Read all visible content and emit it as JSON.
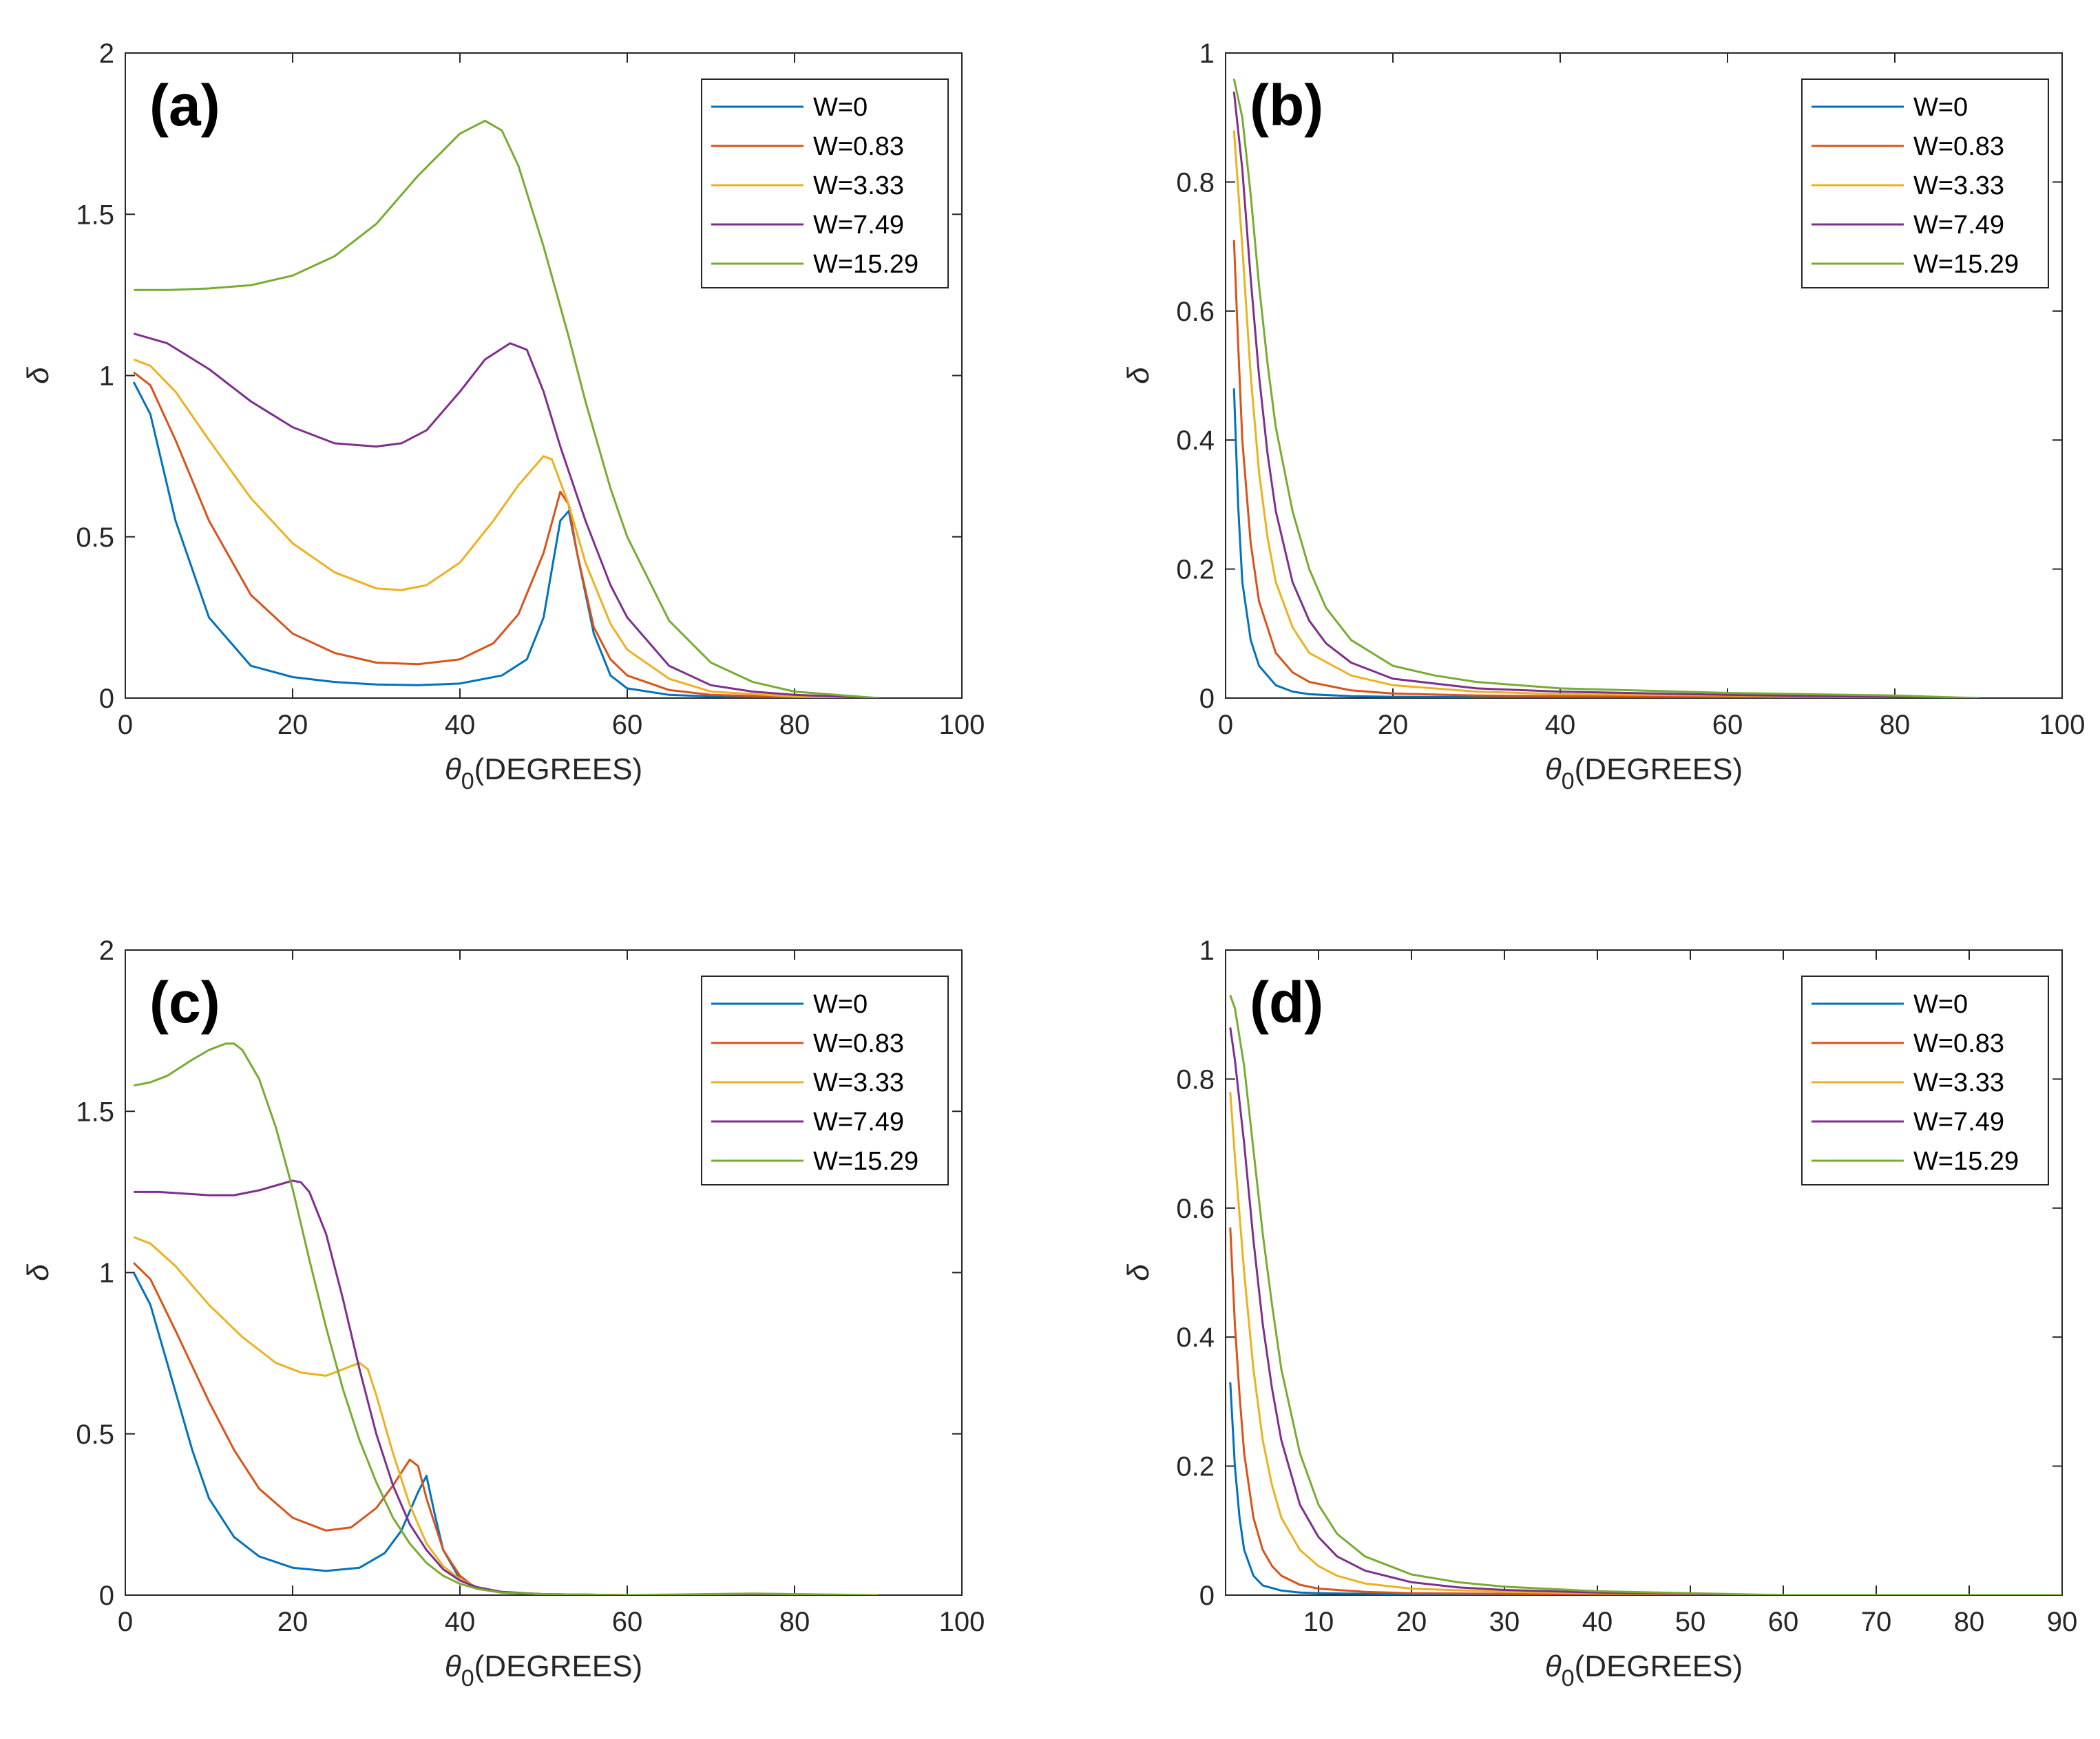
{
  "figure": {
    "panels": [
      {
        "id": "a",
        "panel_label": "(a)"
      },
      {
        "id": "b",
        "panel_label": "(b)"
      },
      {
        "id": "c",
        "panel_label": "(c)"
      },
      {
        "id": "d",
        "panel_label": "(d)"
      }
    ]
  },
  "series_colors": [
    "#0072BD",
    "#D95319",
    "#EDB120",
    "#7E2F8E",
    "#77AC30"
  ],
  "chart_data": [
    {
      "panel": "(a)",
      "type": "line",
      "xlabel_symbol": "θ",
      "xlabel_sub": "0",
      "xlabel_text": "(DEGREES)",
      "ylabel": "δ",
      "xlim": [
        0,
        100
      ],
      "ylim": [
        0,
        2
      ],
      "xticks": [
        0,
        20,
        40,
        60,
        80,
        100
      ],
      "xtick_labels": [
        "0",
        "20",
        "40",
        "60",
        "80",
        "100"
      ],
      "yticks": [
        0,
        0.5,
        1,
        1.5,
        2
      ],
      "ytick_labels": [
        "0",
        "0.5",
        "1",
        "1.5",
        "2"
      ],
      "legend_position": "top-right",
      "series": [
        {
          "name": "W=0",
          "x": [
            1,
            3,
            6,
            10,
            15,
            20,
            25,
            30,
            35,
            40,
            45,
            48,
            50,
            51,
            52,
            53,
            54,
            56,
            58,
            60,
            65,
            70,
            80,
            90
          ],
          "y": [
            0.98,
            0.88,
            0.55,
            0.25,
            0.1,
            0.065,
            0.05,
            0.042,
            0.04,
            0.045,
            0.07,
            0.12,
            0.25,
            0.4,
            0.55,
            0.58,
            0.45,
            0.2,
            0.07,
            0.03,
            0.01,
            0.005,
            0.002,
            0.0
          ]
        },
        {
          "name": "W=0.83",
          "x": [
            1,
            3,
            6,
            10,
            15,
            20,
            25,
            30,
            35,
            40,
            44,
            47,
            50,
            52,
            53,
            54,
            56,
            58,
            60,
            65,
            70,
            80,
            90
          ],
          "y": [
            1.01,
            0.97,
            0.8,
            0.55,
            0.32,
            0.2,
            0.14,
            0.11,
            0.105,
            0.12,
            0.17,
            0.26,
            0.45,
            0.64,
            0.6,
            0.45,
            0.22,
            0.12,
            0.07,
            0.025,
            0.01,
            0.003,
            0.0
          ]
        },
        {
          "name": "W=3.33",
          "x": [
            1,
            3,
            6,
            10,
            15,
            20,
            25,
            30,
            33,
            36,
            40,
            44,
            47,
            50,
            51,
            53,
            55,
            58,
            60,
            65,
            70,
            80,
            90
          ],
          "y": [
            1.05,
            1.03,
            0.95,
            0.8,
            0.62,
            0.48,
            0.39,
            0.34,
            0.335,
            0.35,
            0.42,
            0.55,
            0.66,
            0.75,
            0.74,
            0.6,
            0.42,
            0.23,
            0.15,
            0.06,
            0.02,
            0.005,
            0.0
          ]
        },
        {
          "name": "W=7.49",
          "x": [
            1,
            5,
            10,
            15,
            20,
            25,
            30,
            33,
            36,
            40,
            43,
            46,
            48,
            50,
            52,
            55,
            58,
            60,
            65,
            70,
            75,
            80,
            90
          ],
          "y": [
            1.13,
            1.1,
            1.02,
            0.92,
            0.84,
            0.79,
            0.78,
            0.79,
            0.83,
            0.95,
            1.05,
            1.1,
            1.08,
            0.95,
            0.78,
            0.55,
            0.35,
            0.25,
            0.1,
            0.04,
            0.02,
            0.01,
            0.0
          ]
        },
        {
          "name": "W=15.29",
          "x": [
            1,
            5,
            10,
            15,
            20,
            25,
            30,
            35,
            40,
            43,
            45,
            47,
            50,
            53,
            55,
            58,
            60,
            65,
            70,
            75,
            80,
            90
          ],
          "y": [
            1.265,
            1.265,
            1.27,
            1.28,
            1.31,
            1.37,
            1.47,
            1.62,
            1.75,
            1.79,
            1.76,
            1.65,
            1.4,
            1.12,
            0.92,
            0.65,
            0.5,
            0.24,
            0.11,
            0.05,
            0.02,
            0.0
          ]
        }
      ]
    },
    {
      "panel": "(b)",
      "type": "line",
      "xlabel_symbol": "θ",
      "xlabel_sub": "0",
      "xlabel_text": "(DEGREES)",
      "ylabel": "δ",
      "xlim": [
        0,
        100
      ],
      "ylim": [
        0,
        1
      ],
      "xticks": [
        0,
        20,
        40,
        60,
        80,
        100
      ],
      "xtick_labels": [
        "0",
        "20",
        "40",
        "60",
        "80",
        "100"
      ],
      "yticks": [
        0,
        0.2,
        0.4,
        0.6,
        0.8,
        1
      ],
      "ytick_labels": [
        "0",
        "0.2",
        "0.4",
        "0.6",
        "0.8",
        "1"
      ],
      "legend_position": "top-right",
      "series": [
        {
          "name": "W=0",
          "x": [
            1,
            1.5,
            2,
            3,
            4,
            6,
            8,
            10,
            15,
            20,
            40,
            60,
            90
          ],
          "y": [
            0.48,
            0.3,
            0.18,
            0.09,
            0.05,
            0.02,
            0.01,
            0.006,
            0.003,
            0.002,
            0.001,
            0.0,
            0.0
          ]
        },
        {
          "name": "W=0.83",
          "x": [
            1,
            1.5,
            2,
            3,
            4,
            6,
            8,
            10,
            15,
            20,
            30,
            40,
            60,
            90
          ],
          "y": [
            0.71,
            0.55,
            0.4,
            0.24,
            0.15,
            0.07,
            0.04,
            0.025,
            0.012,
            0.007,
            0.004,
            0.003,
            0.002,
            0.0
          ]
        },
        {
          "name": "W=3.33",
          "x": [
            1,
            2,
            3,
            4,
            5,
            6,
            8,
            10,
            15,
            20,
            30,
            40,
            60,
            90
          ],
          "y": [
            0.88,
            0.7,
            0.5,
            0.35,
            0.25,
            0.18,
            0.11,
            0.07,
            0.035,
            0.02,
            0.01,
            0.006,
            0.004,
            0.0
          ]
        },
        {
          "name": "W=7.49",
          "x": [
            1,
            2,
            3,
            4,
            5,
            6,
            8,
            10,
            12,
            15,
            20,
            30,
            40,
            60,
            90
          ],
          "y": [
            0.94,
            0.82,
            0.65,
            0.5,
            0.38,
            0.29,
            0.18,
            0.12,
            0.085,
            0.055,
            0.03,
            0.015,
            0.01,
            0.005,
            0.0
          ]
        },
        {
          "name": "W=15.29",
          "x": [
            1,
            2,
            3,
            4,
            5,
            6,
            8,
            10,
            12,
            15,
            20,
            25,
            30,
            40,
            60,
            80,
            90
          ],
          "y": [
            0.96,
            0.9,
            0.78,
            0.64,
            0.52,
            0.42,
            0.29,
            0.2,
            0.14,
            0.09,
            0.05,
            0.035,
            0.025,
            0.015,
            0.008,
            0.004,
            0.0
          ]
        }
      ]
    },
    {
      "panel": "(c)",
      "type": "line",
      "xlabel_symbol": "θ",
      "xlabel_sub": "0",
      "xlabel_text": "(DEGREES)",
      "ylabel": "δ",
      "xlim": [
        0,
        100
      ],
      "ylim": [
        0,
        2
      ],
      "xticks": [
        0,
        20,
        40,
        60,
        80,
        100
      ],
      "xtick_labels": [
        "0",
        "20",
        "40",
        "60",
        "80",
        "100"
      ],
      "yticks": [
        0,
        0.5,
        1,
        1.5,
        2
      ],
      "ytick_labels": [
        "0",
        "0.5",
        "1",
        "1.5",
        "2"
      ],
      "legend_position": "top-right",
      "series": [
        {
          "name": "W=0",
          "x": [
            1,
            3,
            5,
            8,
            10,
            13,
            16,
            20,
            24,
            28,
            31,
            33,
            35,
            36,
            37,
            38,
            40,
            42,
            45,
            50,
            60,
            90
          ],
          "y": [
            1.0,
            0.9,
            0.72,
            0.45,
            0.3,
            0.18,
            0.12,
            0.085,
            0.075,
            0.085,
            0.13,
            0.2,
            0.32,
            0.37,
            0.25,
            0.14,
            0.05,
            0.02,
            0.008,
            0.003,
            0.0,
            0.0
          ]
        },
        {
          "name": "W=0.83",
          "x": [
            1,
            3,
            6,
            10,
            13,
            16,
            20,
            24,
            27,
            30,
            32,
            34,
            35,
            36,
            38,
            40,
            42,
            45,
            50,
            60,
            90
          ],
          "y": [
            1.03,
            0.98,
            0.82,
            0.6,
            0.45,
            0.33,
            0.24,
            0.2,
            0.21,
            0.27,
            0.34,
            0.42,
            0.4,
            0.3,
            0.14,
            0.06,
            0.02,
            0.008,
            0.003,
            0.0,
            0.0
          ]
        },
        {
          "name": "W=3.33",
          "x": [
            1,
            3,
            6,
            10,
            14,
            18,
            21,
            24,
            26,
            28,
            29,
            30,
            32,
            34,
            36,
            38,
            40,
            42,
            45,
            50,
            60,
            90
          ],
          "y": [
            1.11,
            1.09,
            1.02,
            0.9,
            0.8,
            0.72,
            0.69,
            0.68,
            0.7,
            0.72,
            0.7,
            0.62,
            0.44,
            0.28,
            0.16,
            0.09,
            0.05,
            0.025,
            0.01,
            0.003,
            0.0,
            0.0
          ]
        },
        {
          "name": "W=7.49",
          "x": [
            1,
            4,
            7,
            10,
            13,
            16,
            18,
            20,
            21,
            22,
            24,
            26,
            28,
            30,
            32,
            34,
            36,
            38,
            40,
            42,
            45,
            50,
            60,
            90
          ],
          "y": [
            1.25,
            1.25,
            1.245,
            1.24,
            1.24,
            1.255,
            1.27,
            1.285,
            1.28,
            1.25,
            1.12,
            0.92,
            0.7,
            0.5,
            0.34,
            0.22,
            0.14,
            0.08,
            0.045,
            0.025,
            0.01,
            0.003,
            0.0,
            0.0
          ]
        },
        {
          "name": "W=15.29",
          "x": [
            1,
            3,
            5,
            8,
            10,
            12,
            13,
            14,
            16,
            18,
            20,
            22,
            24,
            26,
            28,
            30,
            32,
            34,
            36,
            38,
            40,
            42,
            45,
            50,
            60,
            75,
            90
          ],
          "y": [
            1.58,
            1.59,
            1.61,
            1.66,
            1.69,
            1.71,
            1.71,
            1.69,
            1.6,
            1.45,
            1.26,
            1.04,
            0.83,
            0.64,
            0.48,
            0.35,
            0.24,
            0.16,
            0.1,
            0.06,
            0.035,
            0.02,
            0.008,
            0.003,
            0.0,
            0.005,
            0.0
          ]
        }
      ]
    },
    {
      "panel": "(d)",
      "type": "line",
      "xlabel_symbol": "θ",
      "xlabel_sub": "0",
      "xlabel_text": "(DEGREES)",
      "ylabel": "δ",
      "xlim": [
        0,
        90
      ],
      "ylim": [
        0,
        1
      ],
      "xticks": [
        10,
        20,
        30,
        40,
        50,
        60,
        70,
        80,
        90
      ],
      "xtick_labels": [
        "10",
        "20",
        "30",
        "40",
        "50",
        "60",
        "70",
        "80",
        "90"
      ],
      "yticks": [
        0,
        0.2,
        0.4,
        0.6,
        0.8,
        1
      ],
      "ytick_labels": [
        "0",
        "0.2",
        "0.4",
        "0.6",
        "0.8",
        "1"
      ],
      "legend_position": "top-right",
      "series": [
        {
          "name": "W=0",
          "x": [
            0.5,
            1,
            1.5,
            2,
            3,
            4,
            6,
            8,
            10,
            15,
            20,
            40,
            60,
            90
          ],
          "y": [
            0.33,
            0.2,
            0.12,
            0.07,
            0.03,
            0.015,
            0.007,
            0.004,
            0.003,
            0.002,
            0.001,
            0.0,
            0.0,
            0.0
          ]
        },
        {
          "name": "W=0.83",
          "x": [
            0.5,
            1,
            1.5,
            2,
            3,
            4,
            5,
            6,
            8,
            10,
            15,
            20,
            30,
            40,
            60,
            90
          ],
          "y": [
            0.57,
            0.42,
            0.31,
            0.22,
            0.12,
            0.07,
            0.045,
            0.03,
            0.016,
            0.01,
            0.005,
            0.003,
            0.002,
            0.001,
            0.0,
            0.0
          ]
        },
        {
          "name": "W=3.33",
          "x": [
            0.5,
            1,
            2,
            3,
            4,
            5,
            6,
            8,
            10,
            12,
            15,
            20,
            30,
            40,
            60,
            90
          ],
          "y": [
            0.78,
            0.68,
            0.5,
            0.35,
            0.24,
            0.17,
            0.12,
            0.07,
            0.045,
            0.03,
            0.018,
            0.01,
            0.005,
            0.003,
            0.0,
            0.0
          ]
        },
        {
          "name": "W=7.49",
          "x": [
            0.5,
            1,
            2,
            3,
            4,
            5,
            6,
            8,
            10,
            12,
            15,
            20,
            25,
            30,
            40,
            60,
            90
          ],
          "y": [
            0.88,
            0.83,
            0.7,
            0.55,
            0.42,
            0.32,
            0.24,
            0.14,
            0.09,
            0.06,
            0.038,
            0.02,
            0.012,
            0.008,
            0.004,
            0.0,
            0.0
          ]
        },
        {
          "name": "W=15.29",
          "x": [
            0.5,
            1,
            2,
            3,
            4,
            5,
            6,
            8,
            10,
            12,
            15,
            20,
            25,
            30,
            40,
            50,
            60,
            90
          ],
          "y": [
            0.93,
            0.91,
            0.82,
            0.69,
            0.56,
            0.45,
            0.35,
            0.22,
            0.14,
            0.095,
            0.06,
            0.032,
            0.02,
            0.013,
            0.006,
            0.003,
            0.0,
            0.0
          ]
        }
      ]
    }
  ]
}
